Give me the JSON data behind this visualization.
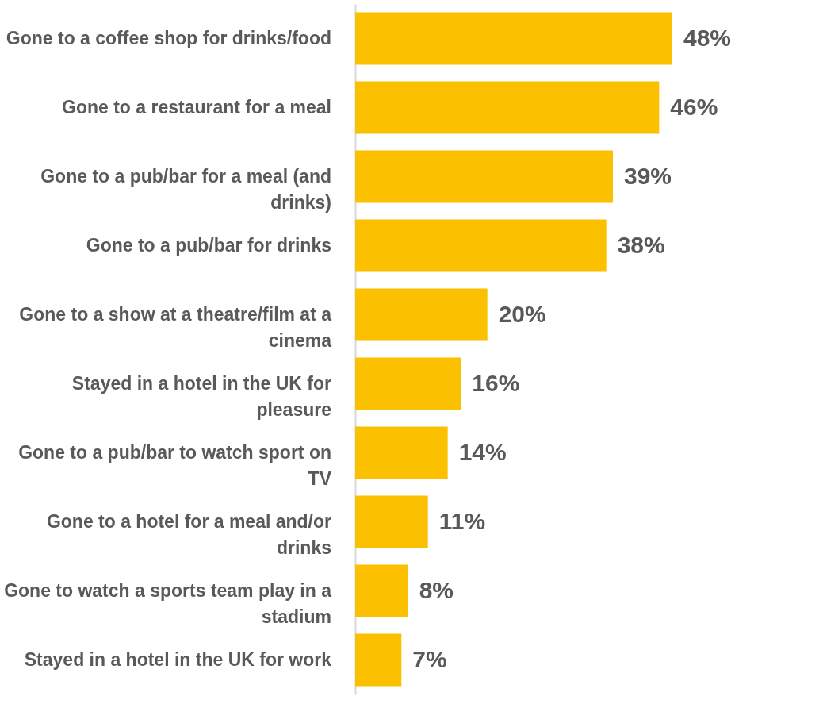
{
  "chart_data": {
    "type": "bar",
    "orientation": "horizontal",
    "grid": false,
    "categories": [
      "Gone to a coffee shop for drinks/food",
      "Gone to a restaurant for a meal",
      "Gone to a pub/bar for a meal (and drinks)",
      "Gone to a pub/bar for drinks",
      "Gone to a show at a theatre/film at a cinema",
      "Stayed in a hotel in the UK for pleasure",
      "Gone to a pub/bar to watch sport on TV",
      "Gone to a hotel for a meal and/or drinks",
      "Gone to watch a sports team play in a stadium",
      "Stayed in a hotel in the UK for work"
    ],
    "series": [
      {
        "color": "#fbc000",
        "values": [
          48,
          46,
          39,
          38,
          20,
          16,
          14,
          11,
          8,
          7
        ],
        "value_labels": [
          "48%",
          "46%",
          "39%",
          "38%",
          "20%",
          "16%",
          "14%",
          "11%",
          "8%",
          "7%"
        ]
      }
    ]
  }
}
